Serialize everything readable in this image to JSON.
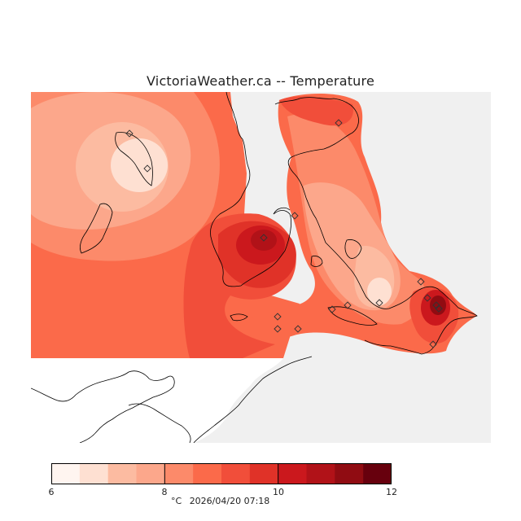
{
  "header": {
    "title": "VictoriaWeather.ca -- Temperature"
  },
  "legend": {
    "min": 6,
    "max": 12,
    "tick_labels": [
      "6",
      "8",
      "10",
      "12"
    ],
    "unit": "°C",
    "timestamp": "2026/04/20 07:18",
    "colors": [
      "#fff5f0",
      "#fee0d2",
      "#fcbba1",
      "#fca78b",
      "#fc8a6a",
      "#fb6a4a",
      "#f14e3a",
      "#e03228",
      "#cb181d",
      "#b11218",
      "#900c12",
      "#67000d"
    ]
  },
  "map": {
    "background_no_data": "#f0f0f0",
    "land_outline_color": "#000000",
    "station_marker": "diamond-station-icon",
    "station_count": 16
  }
}
